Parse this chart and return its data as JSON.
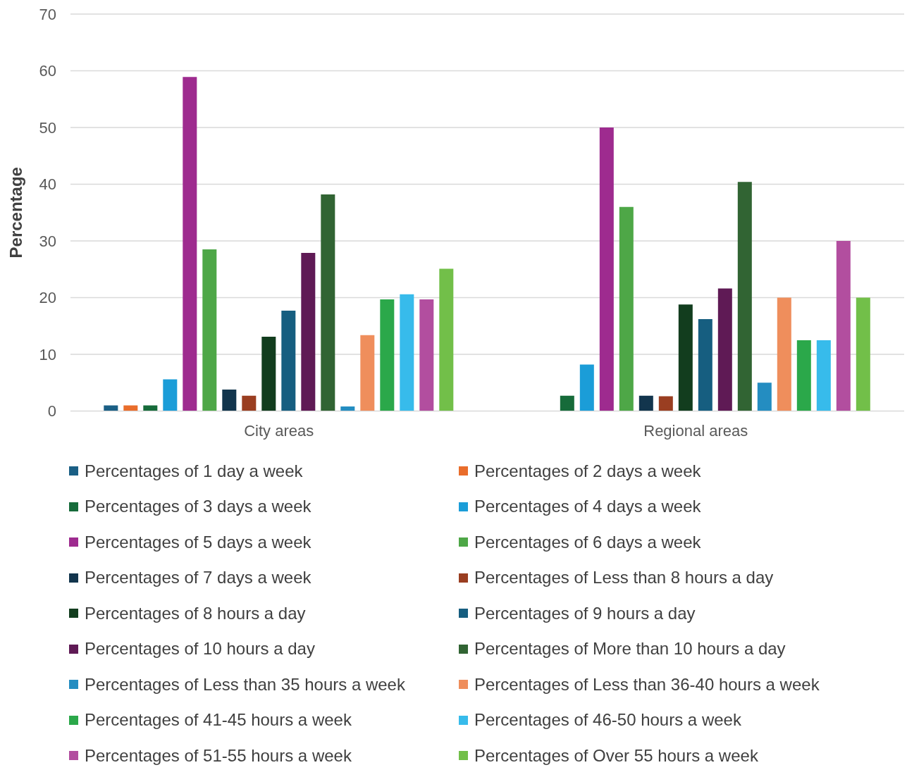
{
  "chart_data": {
    "type": "bar",
    "ylabel": "Percentage",
    "categories": [
      "City areas",
      "Regional areas"
    ],
    "ylim": [
      0,
      70
    ],
    "yticks": [
      0,
      10,
      20,
      30,
      40,
      50,
      60,
      70
    ],
    "grid": "y",
    "legend": "bottom",
    "series": [
      {
        "name": "Percentages of 1 day a week",
        "color": "#1a5f85",
        "values": [
          1.0,
          0
        ]
      },
      {
        "name": "Percentages of 2 days a week",
        "color": "#e96d2b",
        "values": [
          1.0,
          0
        ]
      },
      {
        "name": "Percentages of 3 days a week",
        "color": "#166b3a",
        "values": [
          1.0,
          2.7
        ]
      },
      {
        "name": "Percentages of 4 days a week",
        "color": "#1b9dd8",
        "values": [
          5.6,
          8.2
        ]
      },
      {
        "name": "Percentages of 5 days a week",
        "color": "#9e2b8f",
        "values": [
          58.9,
          50
        ]
      },
      {
        "name": "Percentages of 6 days a week",
        "color": "#4ea747",
        "values": [
          28.5,
          36.0
        ]
      },
      {
        "name": "Percentages of 7 days a week",
        "color": "#12354d",
        "values": [
          3.8,
          2.7
        ]
      },
      {
        "name": "Percentages of Less than 8 hours a day",
        "color": "#9a3e21",
        "values": [
          2.7,
          2.6
        ]
      },
      {
        "name": "Percentages of 8 hours a day",
        "color": "#123d1e",
        "values": [
          13.1,
          18.8
        ]
      },
      {
        "name": "Percentages of 9 hours a day",
        "color": "#165e80",
        "values": [
          17.7,
          16.2
        ]
      },
      {
        "name": "Percentages of 10 hours a day",
        "color": "#5f1a55",
        "values": [
          27.9,
          21.6
        ]
      },
      {
        "name": "Percentages of More than 10 hours a day",
        "color": "#316433",
        "values": [
          38.2,
          40.4
        ]
      },
      {
        "name": "Percentages of Less than 35 hours a week",
        "color": "#248dc1",
        "values": [
          0.8,
          5.0
        ]
      },
      {
        "name": "Percentages of Less than 36-40 hours a week",
        "color": "#ef8e5c",
        "values": [
          13.4,
          20
        ]
      },
      {
        "name": "Percentages of 41-45 hours a week",
        "color": "#2ba84a",
        "values": [
          19.7,
          12.5
        ]
      },
      {
        "name": "Percentages of 46-50 hours a week",
        "color": "#37bbeb",
        "values": [
          20.6,
          12.5
        ]
      },
      {
        "name": "Percentages of 51-55 hours a week",
        "color": "#b24e9f",
        "values": [
          19.7,
          30
        ]
      },
      {
        "name": "Percentages of Over 55 hours a week",
        "color": "#72bf49",
        "values": [
          25.1,
          20
        ]
      }
    ]
  }
}
